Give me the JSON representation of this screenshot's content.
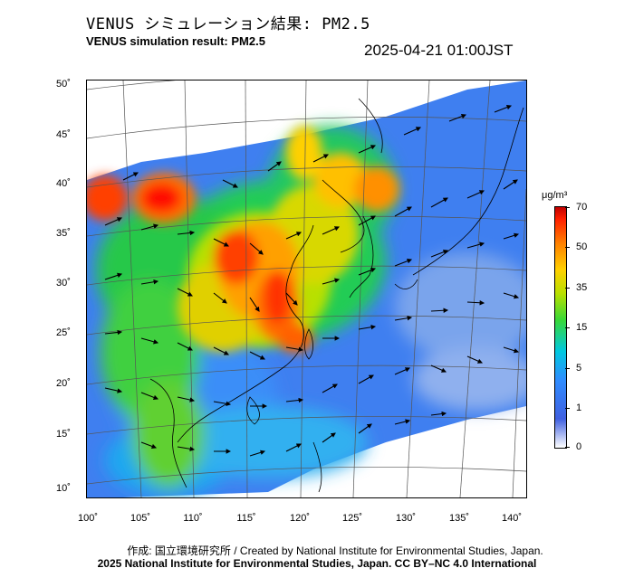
{
  "header": {
    "title_jp": "VENUS シミュレーション結果: PM2.5",
    "title_en": "VENUS simulation result: PM2.5",
    "timestamp": "2025-04-21 01:00JST"
  },
  "map": {
    "lat_labels": [
      "50˚",
      "45˚",
      "40˚",
      "35˚",
      "30˚",
      "25˚",
      "20˚",
      "15˚",
      "10˚"
    ],
    "lon_labels": [
      "100˚",
      "105˚",
      "110˚",
      "115˚",
      "120˚",
      "125˚",
      "130˚",
      "135˚",
      "140˚"
    ]
  },
  "legend": {
    "unit": "μg/m³",
    "ticks": [
      "70",
      "50",
      "35",
      "15",
      "5",
      "1",
      "0"
    ]
  },
  "footer": {
    "credit_line1": "作成: 国立環境研究所 / Created by National Institute for Environmental Studies, Japan.",
    "credit_line2": "2025 National Institute for Environmental Studies, Japan. CC BY–NC 4.0 International"
  }
}
